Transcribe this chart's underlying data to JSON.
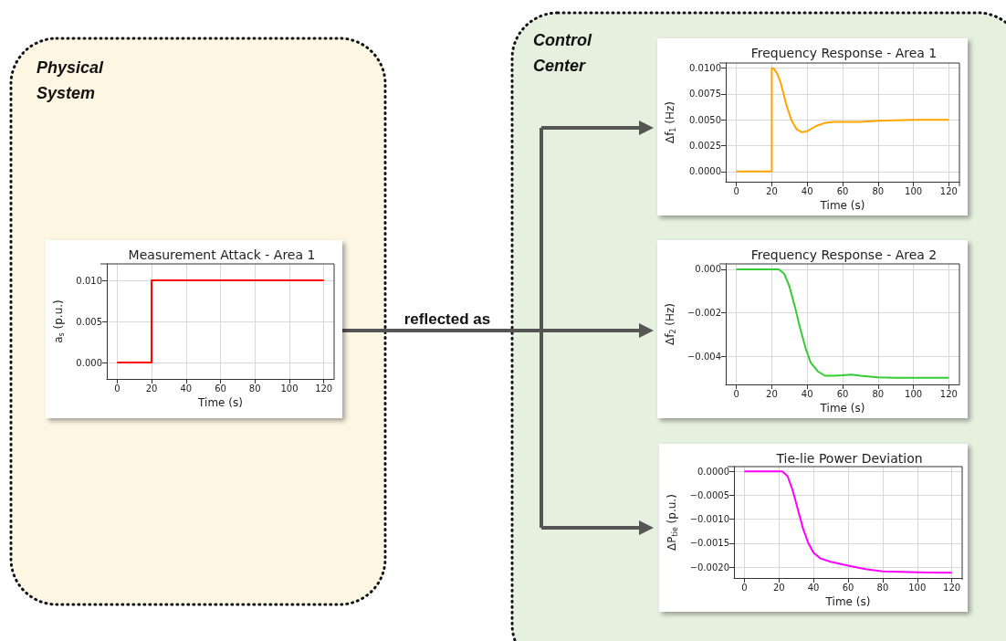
{
  "chart_data": [
    {
      "type": "line",
      "title": "Measurement Attack - Area 1",
      "xlabel": "Time (s)",
      "ylabel": "a$_{s}$ (p.u.)",
      "grid": true,
      "marker": "none",
      "line_style": "solid",
      "xlim": [
        -6,
        126
      ],
      "xticks": [
        0,
        20,
        40,
        60,
        80,
        100,
        120
      ],
      "ylim": [
        -0.002,
        0.012
      ],
      "yticks": [
        {
          "value": 0,
          "label": "0.000"
        },
        {
          "value": 0.005,
          "label": "0.005"
        },
        {
          "value": 0.01,
          "label": "0.010"
        }
      ],
      "series": [
        {
          "color": "#ff0000",
          "x": [
            0,
            20,
            20,
            120
          ],
          "values": [
            0,
            0,
            0.01,
            0.01
          ]
        }
      ]
    },
    {
      "type": "line",
      "title": "Frequency Response - Area 1",
      "xlabel": "Time (s)",
      "ylabel": "Δf$_{1}$ (Hz)",
      "grid": true,
      "marker": "none",
      "line_style": "solid",
      "xlim": [
        -6,
        126
      ],
      "xticks": [
        0,
        20,
        40,
        60,
        80,
        100,
        120
      ],
      "ylim": [
        -0.001,
        0.0105
      ],
      "yticks": [
        {
          "value": 0,
          "label": "0.0000"
        },
        {
          "value": 0.0025,
          "label": "0.0025"
        },
        {
          "value": 0.005,
          "label": "0.0050"
        },
        {
          "value": 0.0075,
          "label": "0.0075"
        },
        {
          "value": 0.01,
          "label": "0.0100"
        }
      ],
      "series": [
        {
          "color": "#ffa500",
          "x": [
            0,
            20,
            20,
            21,
            23,
            25,
            28,
            31,
            34,
            37,
            40,
            45,
            50,
            55,
            60,
            70,
            80,
            100,
            120
          ],
          "values": [
            0,
            0,
            0.01,
            0.01,
            0.0095,
            0.0086,
            0.0066,
            0.005,
            0.0041,
            0.0038,
            0.0039,
            0.0044,
            0.0047,
            0.0048,
            0.0048,
            0.0048,
            0.0049,
            0.005,
            0.005
          ]
        }
      ]
    },
    {
      "type": "line",
      "title": "Frequency Response - Area 2",
      "xlabel": "Time (s)",
      "ylabel": "Δf$_{2}$ (Hz)",
      "grid": true,
      "marker": "none",
      "line_style": "solid",
      "xlim": [
        -6,
        126
      ],
      "xticks": [
        0,
        20,
        40,
        60,
        80,
        100,
        120
      ],
      "ylim": [
        -0.0053,
        0.00025
      ],
      "yticks": [
        {
          "value": -0.004,
          "label": "−0.004"
        },
        {
          "value": -0.002,
          "label": "−0.002"
        },
        {
          "value": 0,
          "label": "0.000"
        }
      ],
      "series": [
        {
          "color": "#33cc33",
          "x": [
            0,
            20,
            24,
            27,
            30,
            33,
            36,
            39,
            42,
            46,
            50,
            55,
            60,
            65,
            70,
            80,
            90,
            120
          ],
          "values": [
            0,
            0,
            0,
            -0.0002,
            -0.0008,
            -0.0017,
            -0.0027,
            -0.0036,
            -0.0043,
            -0.0047,
            -0.0049,
            -0.0049,
            -0.00488,
            -0.00485,
            -0.0049,
            -0.00497,
            -0.005,
            -0.005
          ]
        }
      ]
    },
    {
      "type": "line",
      "title": "Tie-lie Power Deviation",
      "xlabel": "Time (s)",
      "ylabel": "ΔP$_{tie}$ (p.u.)",
      "grid": true,
      "marker": "none",
      "line_style": "solid",
      "xlim": [
        -6,
        126
      ],
      "xticks": [
        0,
        20,
        40,
        60,
        80,
        100,
        120
      ],
      "ylim": [
        -0.00223,
        0.0001
      ],
      "yticks": [
        {
          "value": -0.002,
          "label": "−0.0020"
        },
        {
          "value": -0.0015,
          "label": "−0.0015"
        },
        {
          "value": -0.001,
          "label": "−0.0010"
        },
        {
          "value": -0.0005,
          "label": "−0.0005"
        },
        {
          "value": 0,
          "label": "0.0000"
        }
      ],
      "series": [
        {
          "color": "#ff00ff",
          "x": [
            0,
            20,
            22,
            25,
            28,
            31,
            34,
            37,
            40,
            44,
            50,
            60,
            70,
            80,
            90,
            100,
            120
          ],
          "values": [
            0,
            0,
            0,
            -0.0001,
            -0.0004,
            -0.0008,
            -0.0012,
            -0.0015,
            -0.0017,
            -0.00182,
            -0.00189,
            -0.00197,
            -0.00204,
            -0.00209,
            -0.0021,
            -0.00211,
            -0.00212
          ]
        }
      ]
    },
    {
      "type": "other",
      "annotations": [
        "Physical System",
        "Control Center",
        "reflected as"
      ]
    }
  ]
}
